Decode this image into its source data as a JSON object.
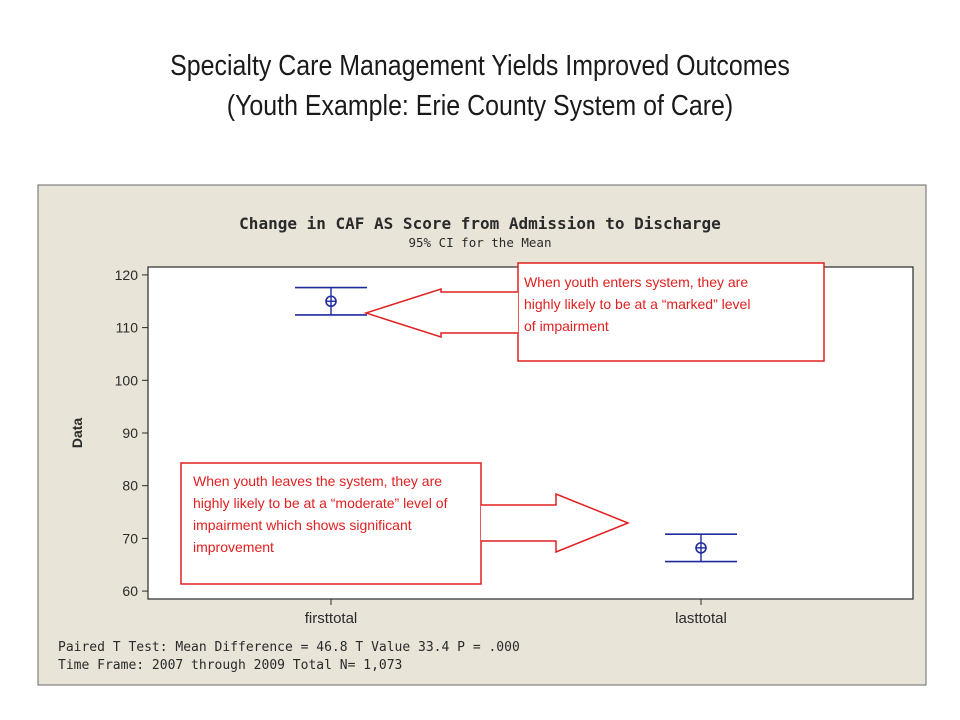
{
  "slide": {
    "title_line1": "Specialty Care Management Yields Improved Outcomes",
    "title_line2": "(Youth Example: Erie County System of Care)"
  },
  "colors": {
    "frame_background": "#e8e4d8",
    "plot_background": "#ffffff",
    "marker": "#1f2a9c",
    "callout": "#e02020"
  },
  "chart_data": {
    "type": "interval",
    "title": "Change in CAF AS Score from Admission to Discharge",
    "subtitle": "95% CI for the Mean",
    "xlabel": "",
    "ylabel": "Data",
    "categories": [
      "firsttotal",
      "lasttotal"
    ],
    "mean": [
      115.0,
      68.2
    ],
    "ci_lower": [
      112.4,
      65.6
    ],
    "ci_upper": [
      117.6,
      70.8
    ],
    "ylim": [
      58.5,
      121.5
    ],
    "yticks": [
      60,
      70,
      80,
      90,
      100,
      110,
      120
    ],
    "grid": false,
    "notes": [
      "Paired T Test:  Mean Difference = 46.8  T Value 33.4  P = .000",
      "Time Frame: 2007 through 2009 Total N= 1,073"
    ],
    "annotations": [
      {
        "text": "When youth enters system, they are highly likely to be at a “marked”  level of impairment",
        "lines": [
          "When youth enters system, they are",
          "highly likely to be at a “marked”  level",
          "of impairment"
        ],
        "points_to": "firsttotal"
      },
      {
        "text": "When youth leaves the system, they are highly likely to be at a “moderate” level of impairment which shows significant improvement",
        "lines": [
          "When youth leaves the system, they are",
          "highly likely to be at a “moderate” level of",
          "impairment which shows significant",
          "improvement"
        ],
        "points_to": "lasttotal"
      }
    ]
  }
}
